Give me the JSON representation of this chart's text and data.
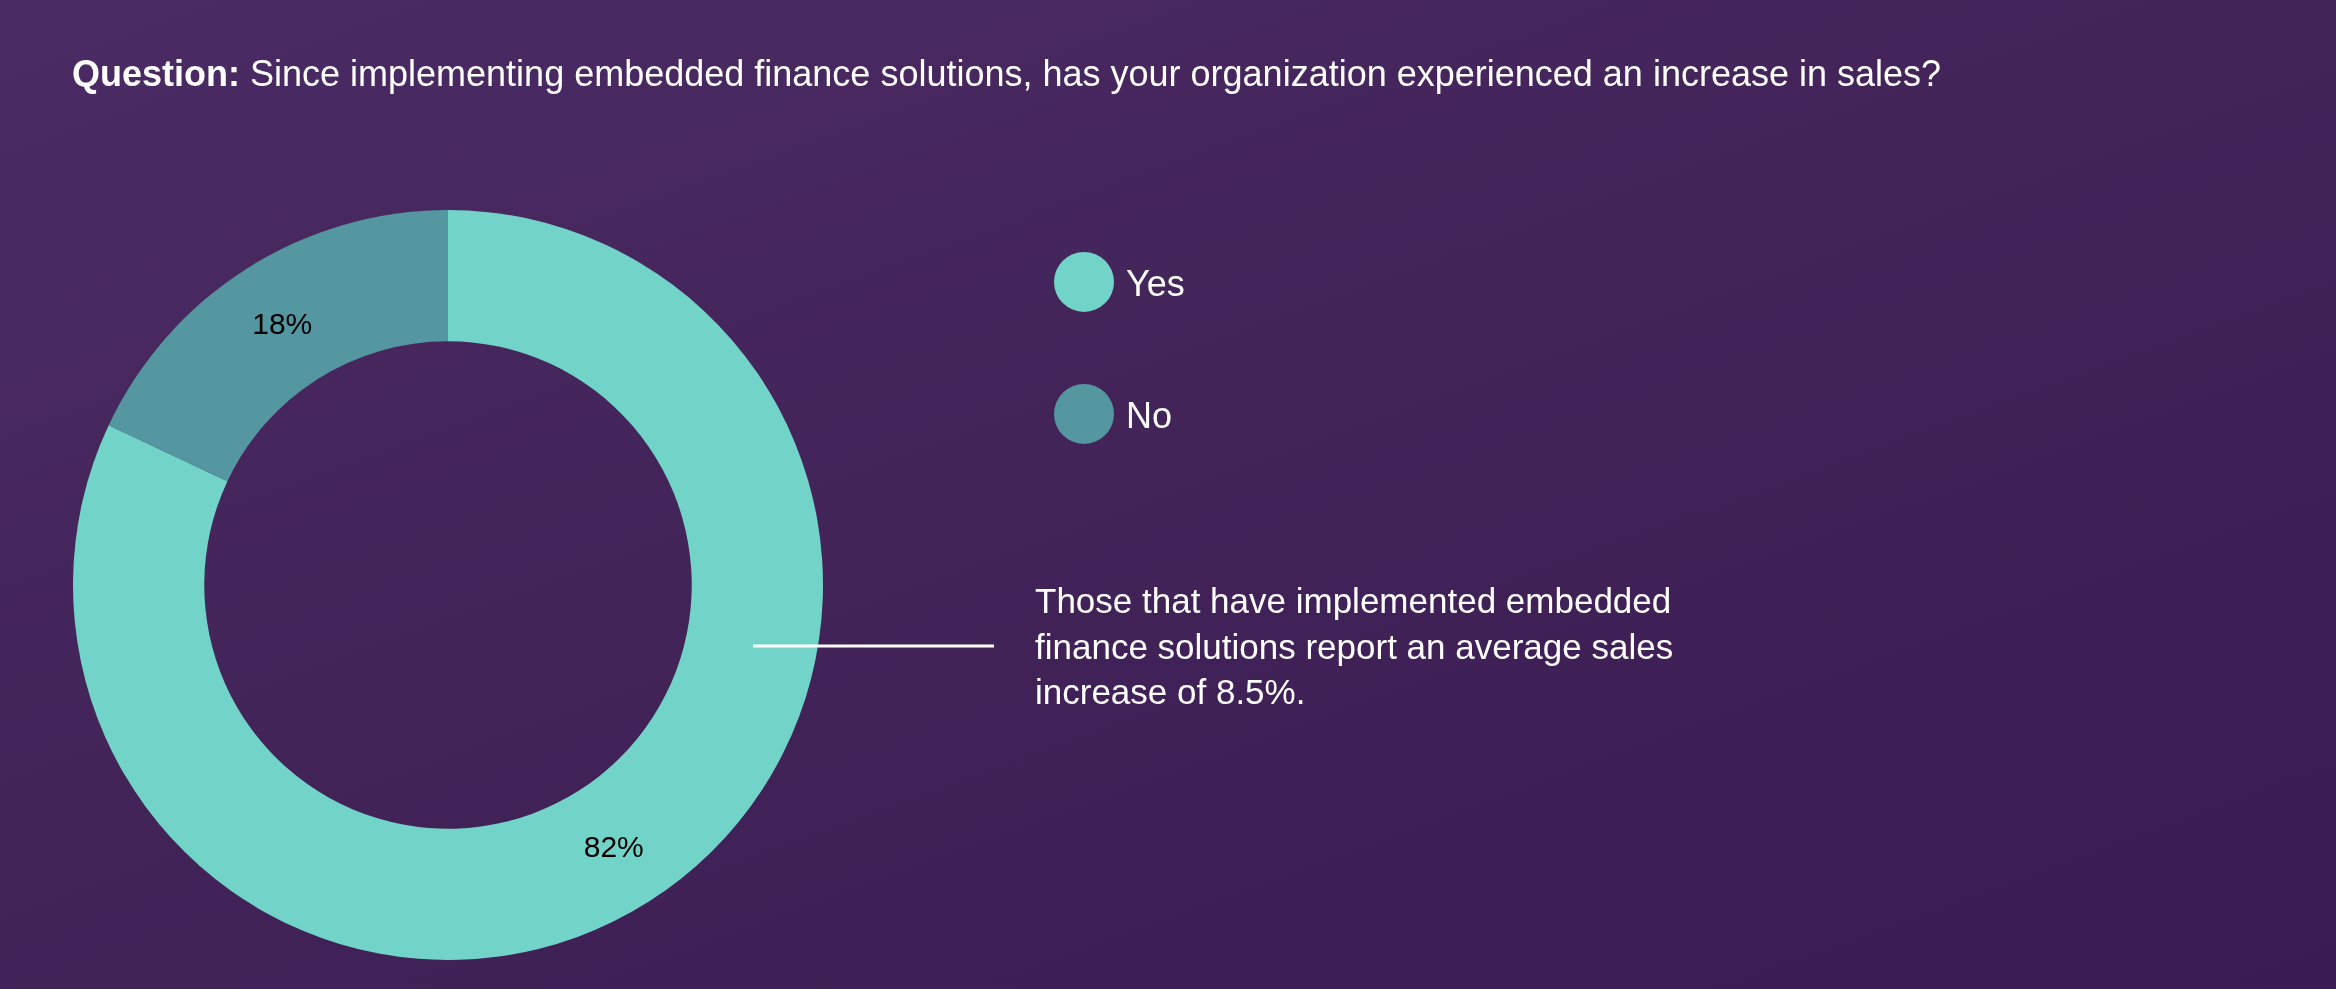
{
  "chart_data": {
    "type": "donut",
    "title": "Question: Since implementing embedded finance solutions, has your organization experienced an increase in sales?",
    "categories": [
      "Yes",
      "No"
    ],
    "values": [
      82,
      18
    ],
    "colors": [
      "#72d4c8",
      "#5497a0"
    ],
    "value_labels": [
      "82%",
      "18%"
    ],
    "legend": "right",
    "annotations": [
      "Those that have implemented embedded finance solutions report an average sales increase of 8.5%."
    ]
  }
}
